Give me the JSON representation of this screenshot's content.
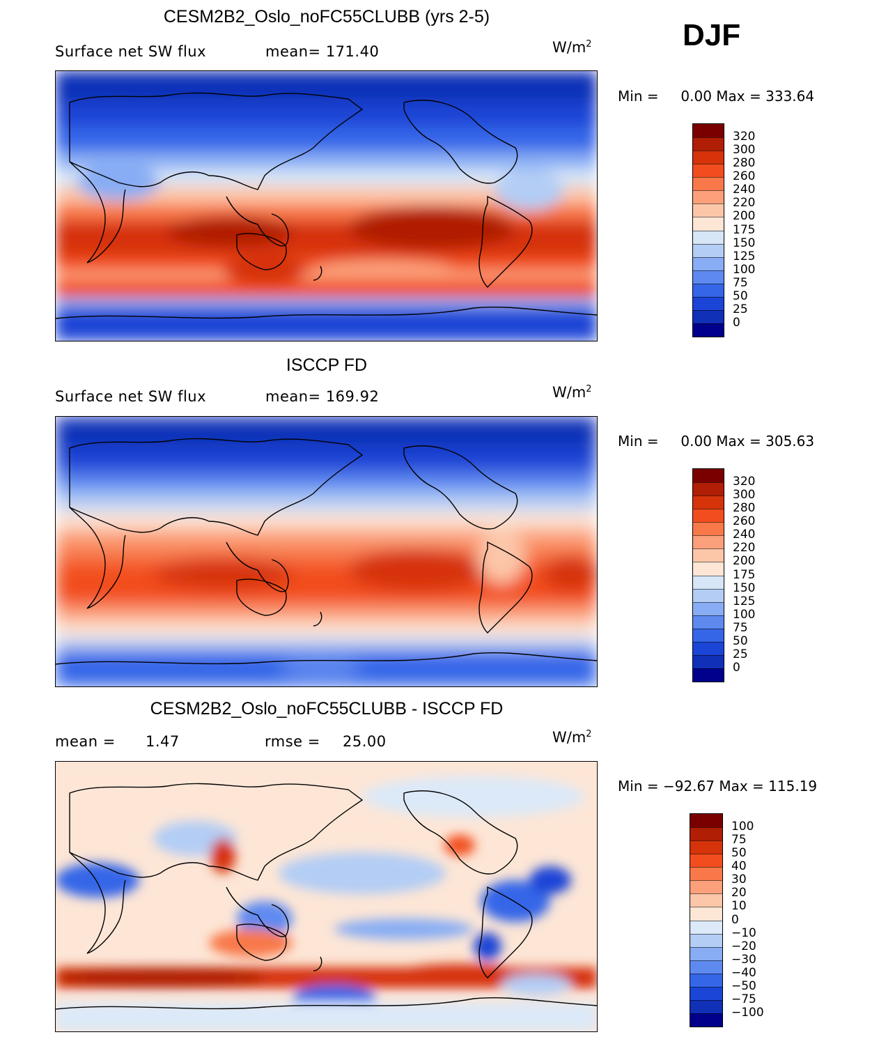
{
  "season": "DJF",
  "panels": [
    {
      "title": "CESM2B2_Oslo_noFC55CLUBB (yrs 2-5)",
      "left_label": "Surface net SW flux",
      "stat_label": "mean= 171.40",
      "units": "W/m",
      "units_exp": "2",
      "min_label": "Min =",
      "min_value": "0.00",
      "max_label": "Max =",
      "max_value": "333.64",
      "levels": [
        "320",
        "300",
        "280",
        "260",
        "240",
        "220",
        "200",
        "175",
        "150",
        "125",
        "100",
        "75",
        "50",
        "25",
        "0"
      ]
    },
    {
      "title": "ISCCP FD",
      "left_label": "Surface net SW flux",
      "stat_label": "mean= 169.92",
      "units": "W/m",
      "units_exp": "2",
      "min_label": "Min =",
      "min_value": "0.00",
      "max_label": "Max =",
      "max_value": "305.63",
      "levels": [
        "320",
        "300",
        "280",
        "260",
        "240",
        "220",
        "200",
        "175",
        "150",
        "125",
        "100",
        "75",
        "50",
        "25",
        "0"
      ]
    },
    {
      "title": "CESM2B2_Oslo_noFC55CLUBB - ISCCP FD",
      "left_label": "mean =",
      "left_value": "1.47",
      "stat_label": "rmse =",
      "stat_value": "25.00",
      "units": "W/m",
      "units_exp": "2",
      "min_label": "Min =",
      "min_value": "−92.67",
      "max_label": "Max =",
      "max_value": "115.19",
      "levels": [
        "100",
        "75",
        "50",
        "40",
        "30",
        "20",
        "10",
        "0",
        "−10",
        "−20",
        "−30",
        "−40",
        "−50",
        "−75",
        "−100"
      ]
    }
  ],
  "colors": {
    "abs_scale": [
      "#7a0000",
      "#b01e05",
      "#d6330a",
      "#f24d1e",
      "#f8784a",
      "#fba07a",
      "#fcc6a8",
      "#fde6d6",
      "#d7e6f7",
      "#b3cdf5",
      "#88adf4",
      "#5e8af0",
      "#3566e8",
      "#1b45d6",
      "#1030b8",
      "#00008c"
    ],
    "diff_scale": [
      "#7a0000",
      "#b01e05",
      "#d6330a",
      "#f24d1e",
      "#f8784a",
      "#fba07a",
      "#fcc6a8",
      "#fde6d6",
      "#dce9f8",
      "#b3cdf5",
      "#88adf4",
      "#5e8af0",
      "#3566e8",
      "#1b45d6",
      "#1030b8",
      "#00008c"
    ]
  }
}
